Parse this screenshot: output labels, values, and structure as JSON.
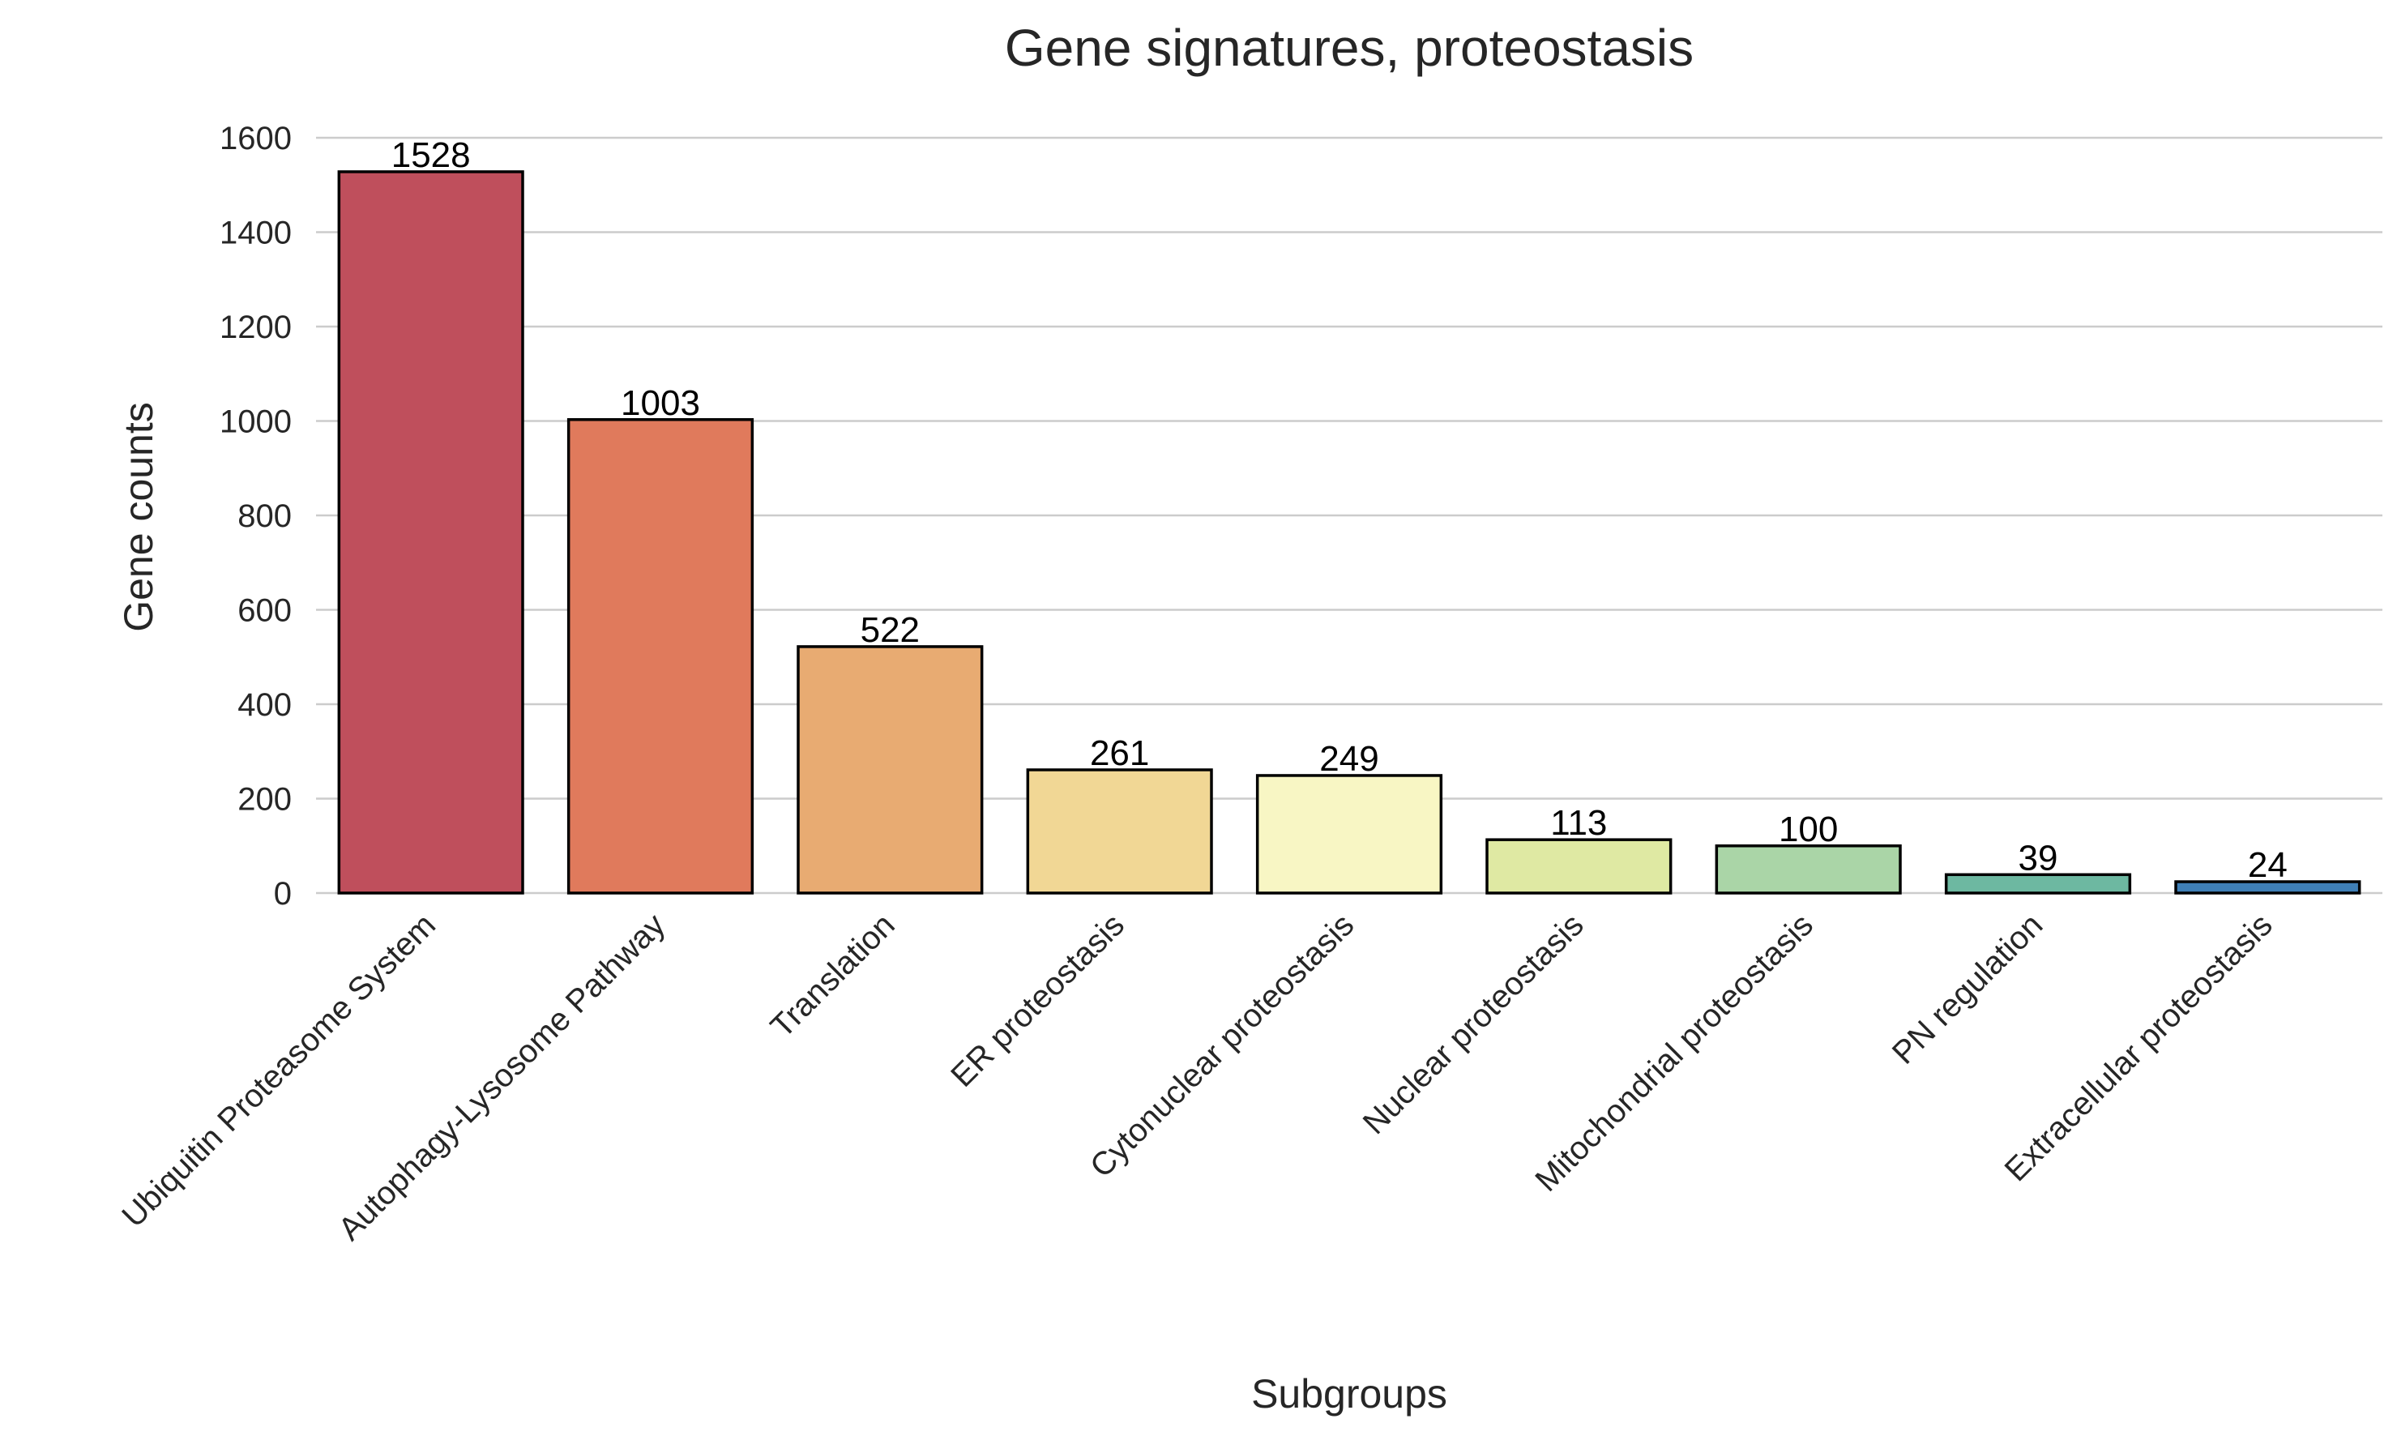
{
  "chart_data": {
    "type": "bar",
    "title": "Gene signatures, proteostasis",
    "xlabel": "Subgroups",
    "ylabel": "Gene counts",
    "ylim": [
      0,
      1600
    ],
    "yticks": [
      0,
      200,
      400,
      600,
      800,
      1000,
      1200,
      1400,
      1600
    ],
    "grid": "horizontal",
    "categories": [
      "Ubiquitin Proteasome System",
      "Autophagy-Lysosome Pathway",
      "Translation",
      "ER proteostasis",
      "Cytonuclear proteostasis",
      "Nuclear proteostasis",
      "Mitochondrial proteostasis",
      "PN regulation",
      "Extracellular proteostasis"
    ],
    "values": [
      1528,
      1003,
      522,
      261,
      249,
      113,
      100,
      39,
      24
    ],
    "data_labels": [
      "1528",
      "1003",
      "522",
      "261",
      "249",
      "113",
      "100",
      "39",
      "24"
    ],
    "colors": [
      "#bf4f5c",
      "#e07a5c",
      "#e8ab72",
      "#f1d795",
      "#f8f6c4",
      "#dfe9a3",
      "#aad5a7",
      "#6db8a1",
      "#3f7fb6"
    ]
  }
}
